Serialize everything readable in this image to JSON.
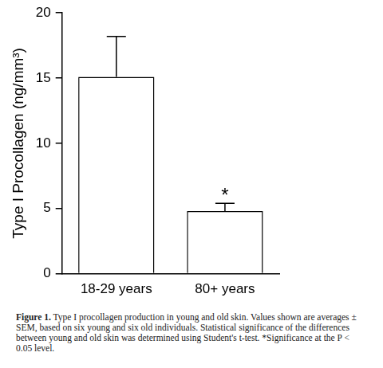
{
  "chart_data": {
    "type": "bar",
    "y_label": "Type I Procollagen (ng/mm³)",
    "categories": [
      "18-29 years",
      "80+ years"
    ],
    "values": [
      15.1,
      4.8
    ],
    "errors": [
      3.1,
      0.6
    ],
    "color": "#ffffff",
    "ylim": [
      0,
      20
    ],
    "yticks": [
      0,
      5,
      10,
      15,
      20
    ],
    "grid": false,
    "annotations": [
      {
        "x": "80+ years",
        "text": "*"
      }
    ],
    "caption": {
      "label": "Figure 1.",
      "text": "Type I procollagen production in young and old skin. Values shown are averages ± SEM, based on six young and six old individuals. Statistical significance of the differences between young and old skin was determined using Student's t-test. *Significance at the P < 0.05 level."
    }
  }
}
